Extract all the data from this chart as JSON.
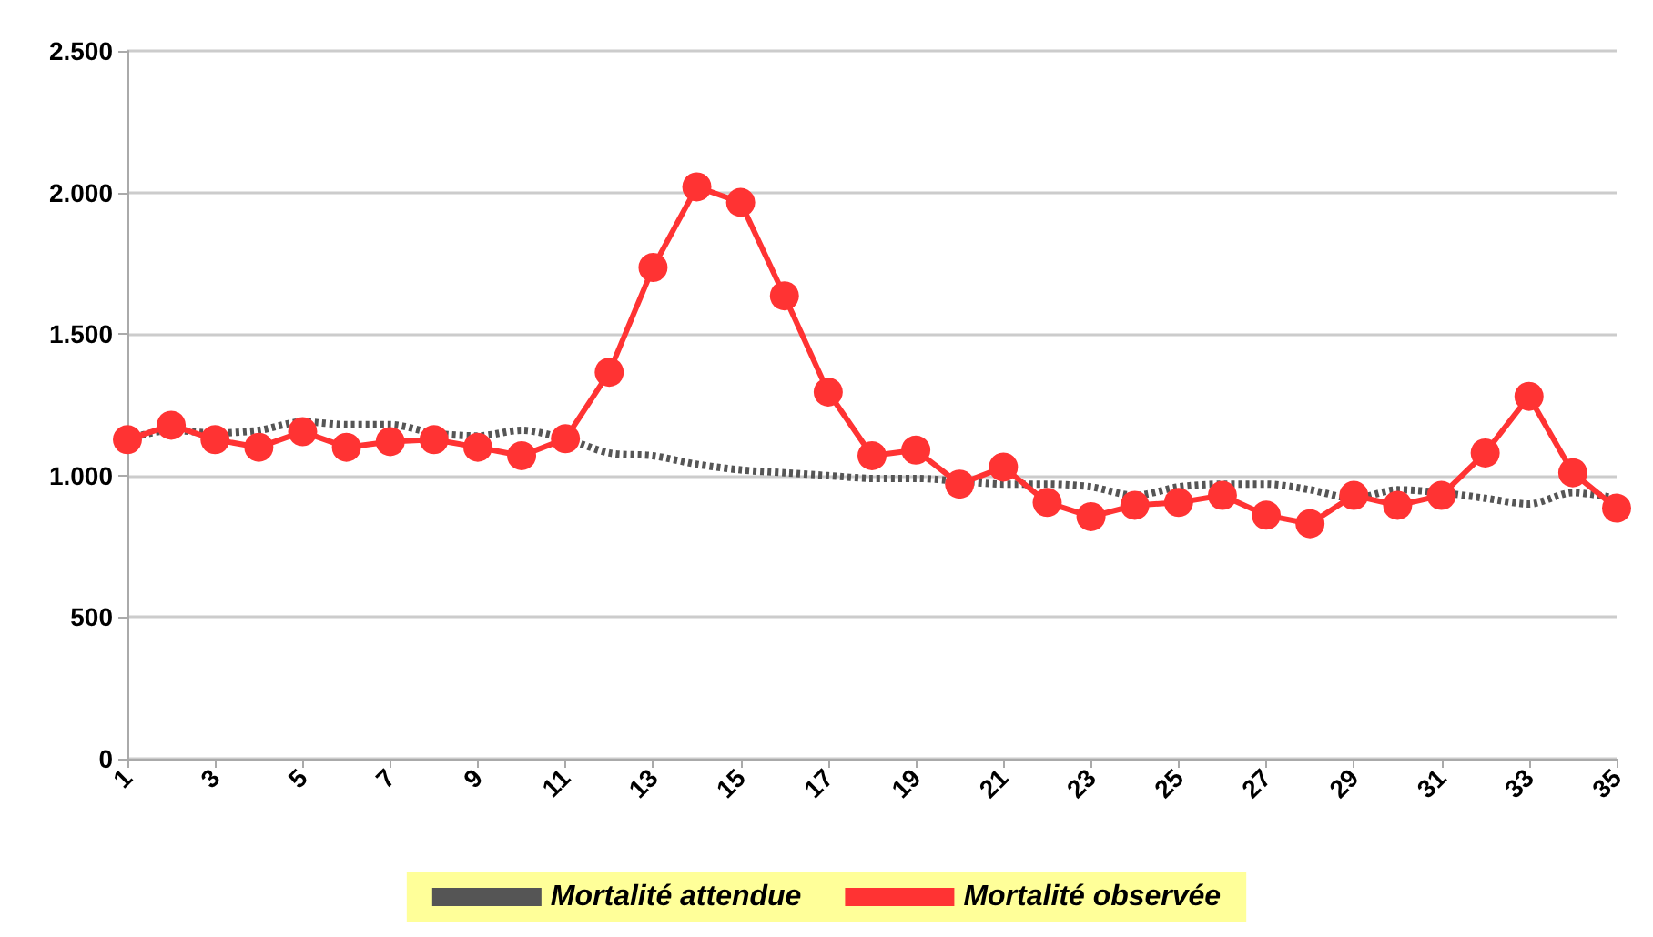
{
  "chart_data": {
    "type": "line",
    "x": [
      1,
      2,
      3,
      4,
      5,
      6,
      7,
      8,
      9,
      10,
      11,
      12,
      13,
      14,
      15,
      16,
      17,
      18,
      19,
      20,
      21,
      22,
      23,
      24,
      25,
      26,
      27,
      28,
      29,
      30,
      31,
      32,
      33,
      34,
      35
    ],
    "xlim": [
      1,
      35
    ],
    "xticks": [
      1,
      3,
      5,
      7,
      9,
      11,
      13,
      15,
      17,
      19,
      21,
      23,
      25,
      27,
      29,
      31,
      33,
      35
    ],
    "ylim": [
      0,
      2500
    ],
    "yticks": [
      0,
      500,
      {
        "value": 1000,
        "label": "1.000"
      },
      {
        "value": 1500,
        "label": "1.500"
      },
      {
        "value": 2000,
        "label": "2.000"
      },
      {
        "value": 2500,
        "label": "2.500"
      }
    ],
    "grid": "y",
    "legend": "bottom",
    "series": [
      {
        "name": "Mortalité attendue",
        "color": "#555555",
        "line_style": "dotted",
        "marker": "none",
        "values": [
          1130,
          1160,
          1150,
          1160,
          1190,
          1180,
          1180,
          1150,
          1140,
          1160,
          1130,
          1080,
          1070,
          1040,
          1020,
          1010,
          1000,
          990,
          990,
          980,
          970,
          970,
          960,
          930,
          960,
          970,
          970,
          950,
          920,
          950,
          940,
          920,
          900,
          940,
          920
        ]
      },
      {
        "name": "Mortalité observée",
        "color": "#ff3333",
        "line_style": "solid",
        "marker": "circle",
        "values": [
          1127,
          1178,
          1127,
          1100,
          1155,
          1100,
          1120,
          1127,
          1100,
          1070,
          1130,
          1365,
          1735,
          2020,
          1965,
          1635,
          1295,
          1070,
          1090,
          970,
          1030,
          905,
          855,
          895,
          905,
          930,
          860,
          830,
          930,
          895,
          930,
          1080,
          1280,
          1010,
          885
        ]
      }
    ]
  }
}
